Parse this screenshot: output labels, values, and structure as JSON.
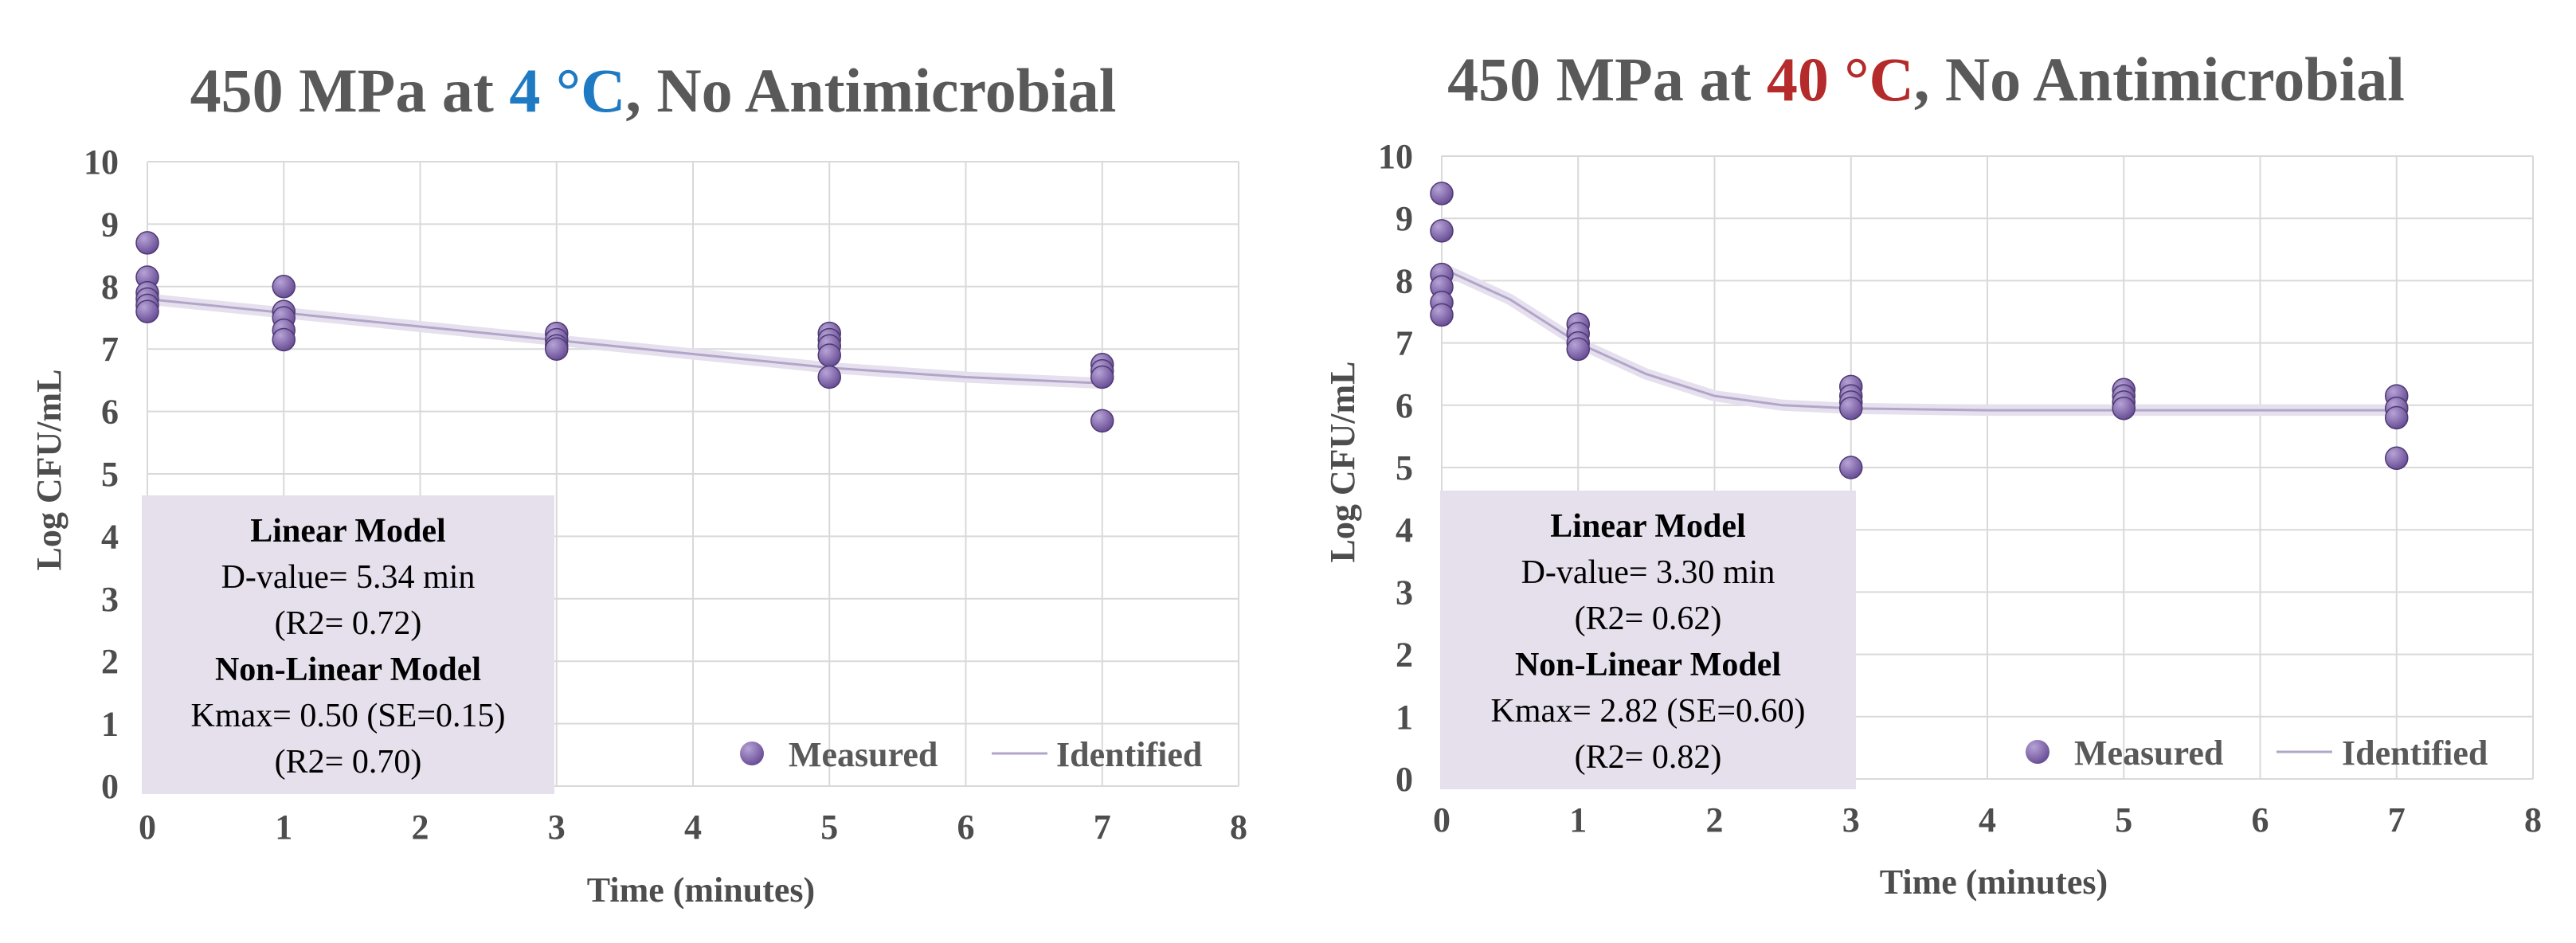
{
  "colors": {
    "point": "#6a4f97",
    "point_highlight": "#b7a3d6",
    "line": "#b1a6c9",
    "grid": "#d9d9d9",
    "box_fill": "#e6e0ec",
    "accent_4c": "#1f7ac4",
    "accent_40c": "#b52a2a",
    "title_gray": "#595959"
  },
  "chart_data": [
    {
      "type": "scatter",
      "title": {
        "prefix": "450 MPa at ",
        "highlight": "4 °C",
        "suffix": ", No Antimicrobial",
        "highlight_color": "#1f7ac4"
      },
      "xlabel": "Time (minutes)",
      "ylabel": "Log CFU/mL",
      "xlim": [
        0,
        8
      ],
      "ylim": [
        0,
        10
      ],
      "xticks": [
        "0",
        "1",
        "2",
        "3",
        "4",
        "5",
        "6",
        "7",
        "8"
      ],
      "yticks": [
        "0",
        "1",
        "2",
        "3",
        "4",
        "5",
        "6",
        "7",
        "8",
        "9",
        "10"
      ],
      "grid": true,
      "legend": {
        "position": "bottom-right",
        "measured": "Measured",
        "identified": "Identified"
      },
      "series": [
        {
          "name": "Measured",
          "points": [
            [
              0,
              8.7
            ],
            [
              0,
              8.15
            ],
            [
              0,
              7.9
            ],
            [
              0,
              7.8
            ],
            [
              0,
              7.7
            ],
            [
              0,
              7.6
            ],
            [
              1,
              8.0
            ],
            [
              1,
              7.6
            ],
            [
              1,
              7.5
            ],
            [
              1,
              7.3
            ],
            [
              1,
              7.15
            ],
            [
              3,
              7.25
            ],
            [
              3,
              7.15
            ],
            [
              3,
              7.05
            ],
            [
              3,
              7.0
            ],
            [
              5,
              7.25
            ],
            [
              5,
              7.15
            ],
            [
              5,
              7.05
            ],
            [
              5,
              6.9
            ],
            [
              5,
              6.55
            ],
            [
              7,
              6.75
            ],
            [
              7,
              6.65
            ],
            [
              7,
              6.55
            ],
            [
              7,
              5.85
            ]
          ]
        },
        {
          "name": "Identified",
          "line": [
            [
              0,
              7.8
            ],
            [
              1,
              7.58
            ],
            [
              2,
              7.36
            ],
            [
              3,
              7.14
            ],
            [
              4,
              6.92
            ],
            [
              5,
              6.7
            ],
            [
              6,
              6.55
            ],
            [
              7,
              6.45
            ]
          ]
        }
      ],
      "annotation": {
        "lines": [
          "Linear Model",
          "D-value=  5.34 min",
          "(R2= 0.72)",
          "Non-Linear Model",
          "Kmax= 0.50 (SE=0.15)",
          "(R2= 0.70)"
        ]
      }
    },
    {
      "type": "scatter",
      "title": {
        "prefix": "450 MPa at ",
        "highlight": "40 °C",
        "suffix": ", No Antimicrobial",
        "highlight_color": "#b52a2a"
      },
      "xlabel": "Time (minutes)",
      "ylabel": "Log CFU/mL",
      "xlim": [
        0,
        8
      ],
      "ylim": [
        0,
        10
      ],
      "xticks": [
        "0",
        "1",
        "2",
        "3",
        "4",
        "5",
        "6",
        "7",
        "8"
      ],
      "yticks": [
        "0",
        "1",
        "2",
        "3",
        "4",
        "5",
        "6",
        "7",
        "8",
        "9",
        "10"
      ],
      "grid": true,
      "legend": {
        "position": "bottom-right",
        "measured": "Measured",
        "identified": "Identified"
      },
      "series": [
        {
          "name": "Measured",
          "points": [
            [
              0,
              9.4
            ],
            [
              0,
              8.8
            ],
            [
              0,
              8.1
            ],
            [
              0,
              7.9
            ],
            [
              0,
              7.65
            ],
            [
              0,
              7.45
            ],
            [
              1,
              7.3
            ],
            [
              1,
              7.15
            ],
            [
              1,
              7.0
            ],
            [
              1,
              6.9
            ],
            [
              3,
              6.3
            ],
            [
              3,
              6.15
            ],
            [
              3,
              6.05
            ],
            [
              3,
              5.95
            ],
            [
              3,
              5.0
            ],
            [
              5,
              6.25
            ],
            [
              5,
              6.15
            ],
            [
              5,
              6.05
            ],
            [
              5,
              5.95
            ],
            [
              7,
              6.15
            ],
            [
              7,
              5.95
            ],
            [
              7,
              5.8
            ],
            [
              7,
              5.15
            ]
          ]
        },
        {
          "name": "Identified",
          "line": [
            [
              0,
              8.2
            ],
            [
              0.5,
              7.7
            ],
            [
              1,
              7.0
            ],
            [
              1.5,
              6.5
            ],
            [
              2,
              6.15
            ],
            [
              2.5,
              6.0
            ],
            [
              3,
              5.95
            ],
            [
              4,
              5.92
            ],
            [
              5,
              5.92
            ],
            [
              6,
              5.92
            ],
            [
              7,
              5.92
            ]
          ]
        }
      ],
      "annotation": {
        "lines": [
          "Linear Model",
          "D-value=  3.30 min",
          "(R2= 0.62)",
          "Non-Linear Model",
          "Kmax= 2.82 (SE=0.60)",
          "(R2= 0.82)"
        ]
      }
    }
  ]
}
